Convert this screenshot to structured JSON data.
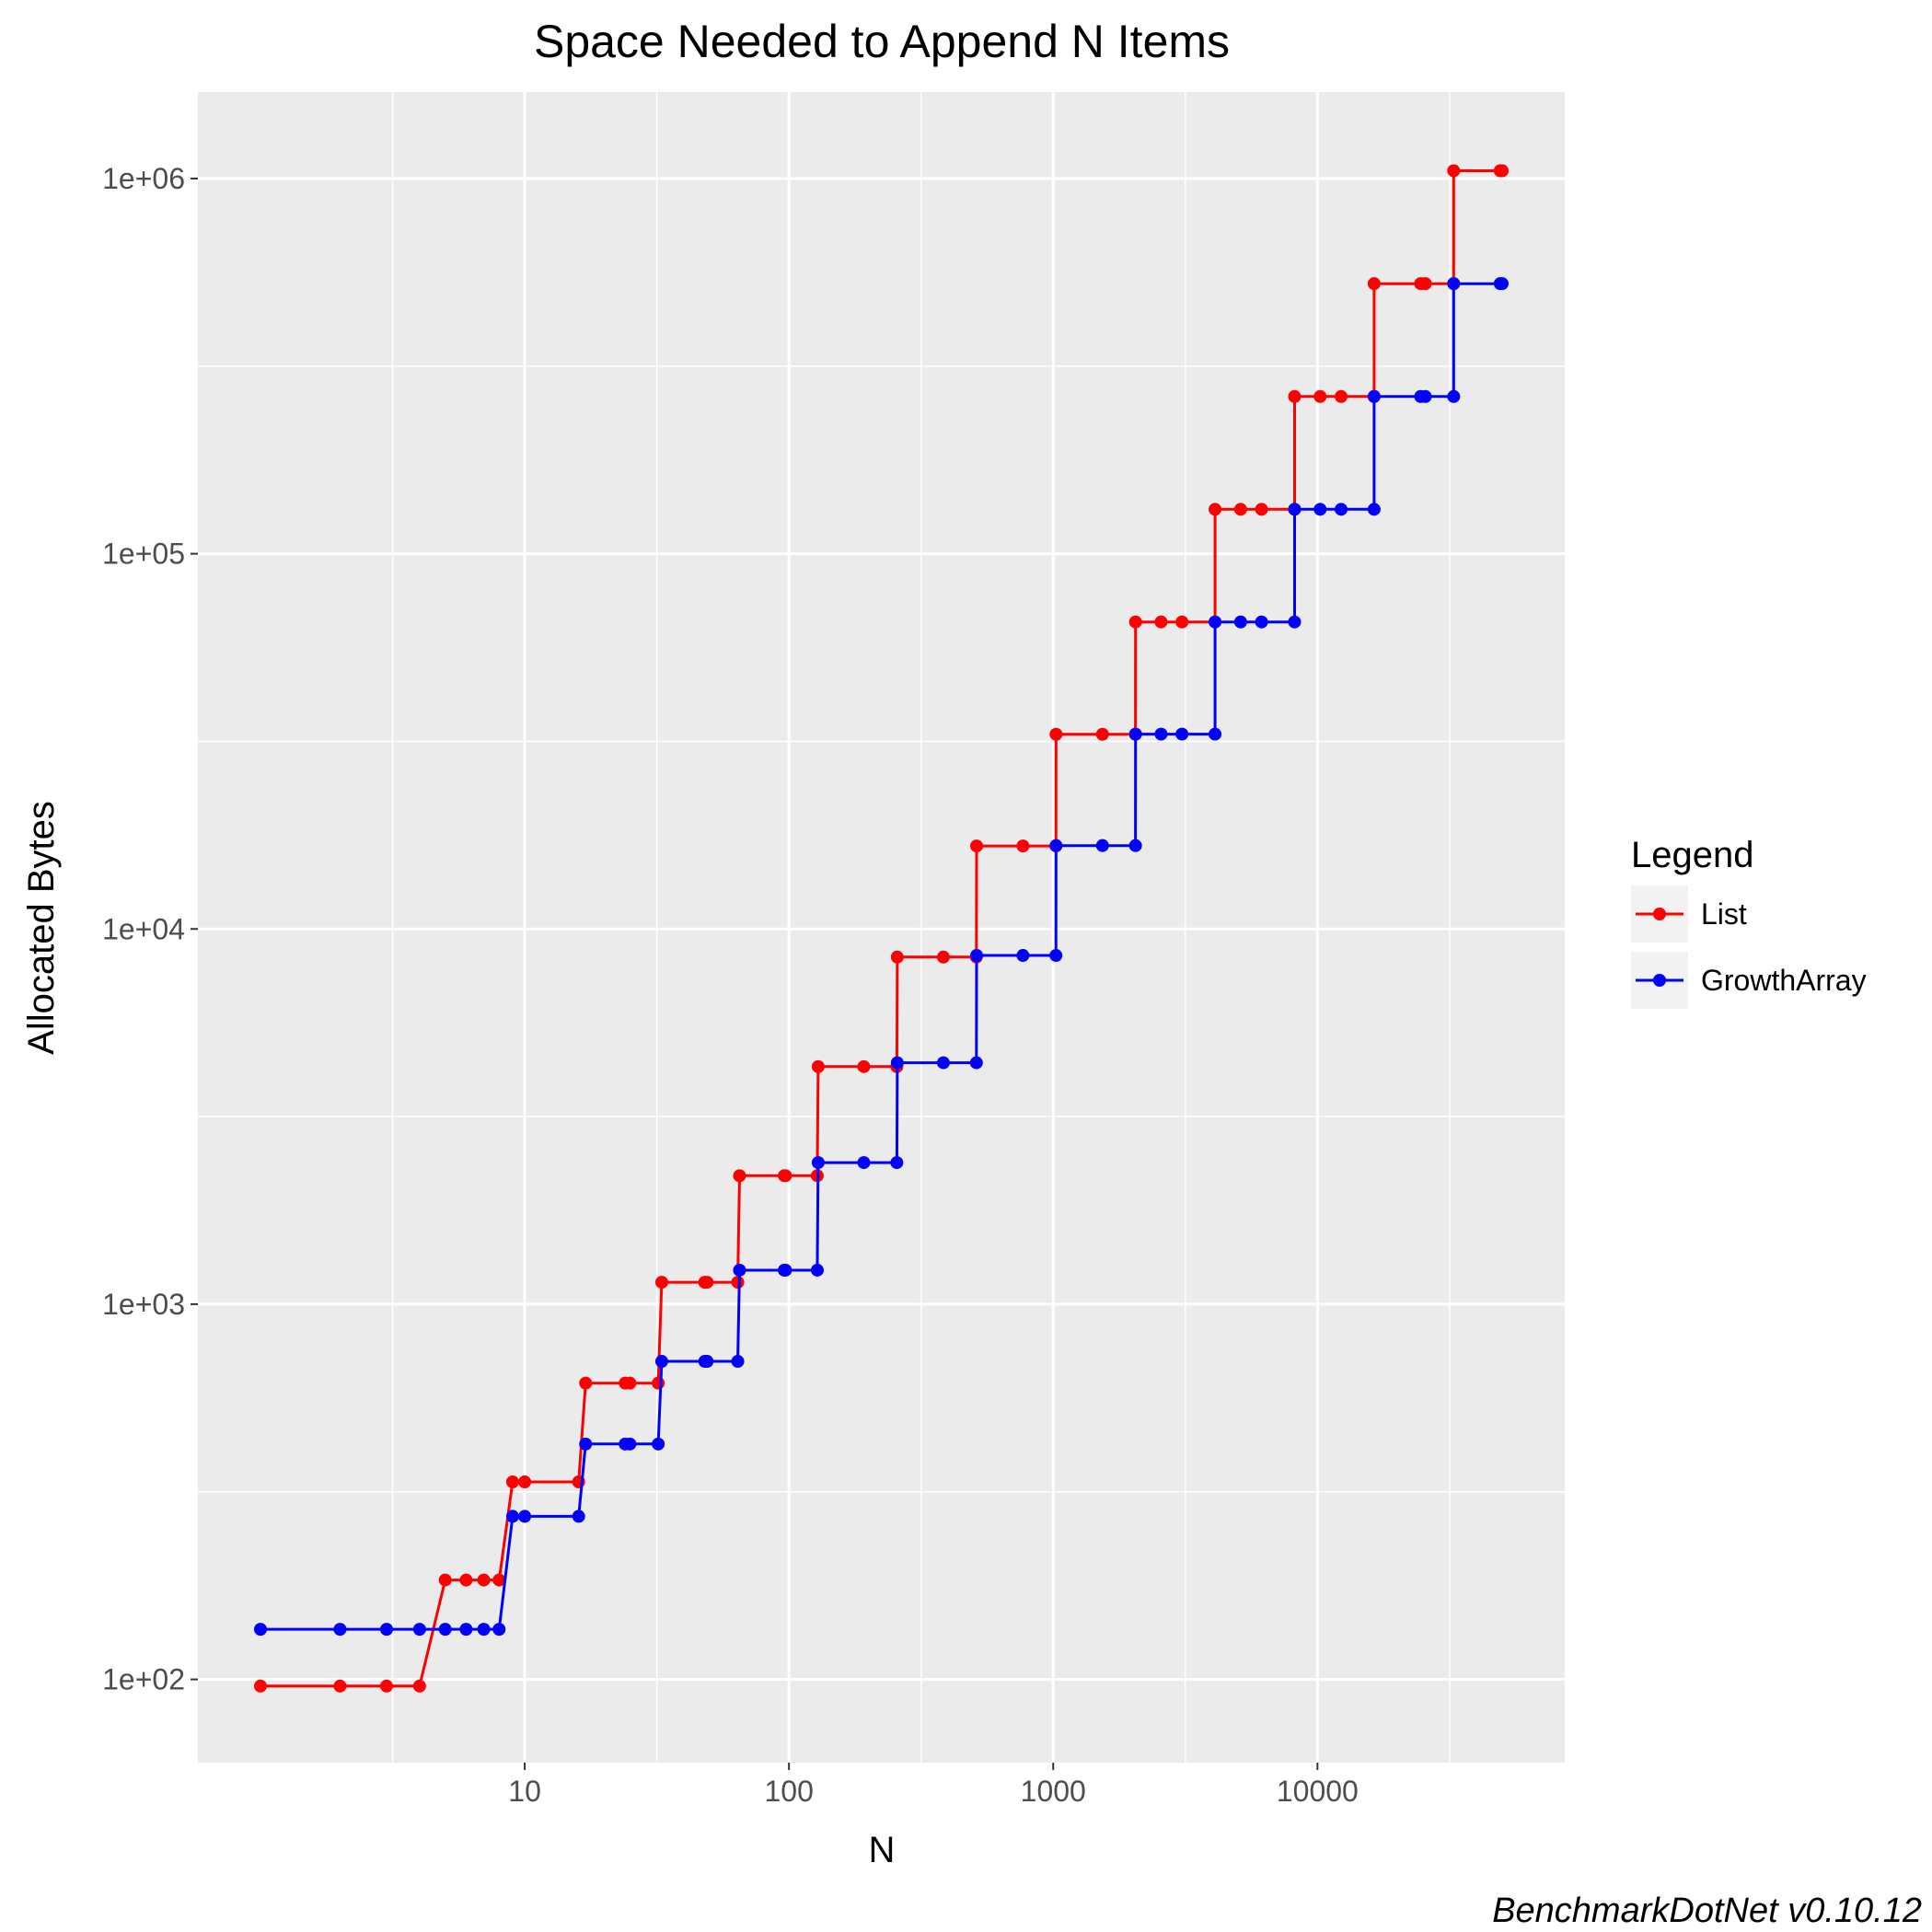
{
  "chart_data": {
    "type": "line",
    "title": "Space Needed to Append N Items",
    "xlabel": "N",
    "ylabel": "Allocated Bytes",
    "x_scale": "log10",
    "y_scale": "log10",
    "xlim": [
      1,
      50000
    ],
    "ylim": [
      60,
      1700000
    ],
    "x_ticks": [
      10,
      100,
      1000,
      10000
    ],
    "x_tick_labels": [
      "10",
      "100",
      "1000",
      "10000"
    ],
    "y_ticks": [
      100,
      1000,
      10000,
      100000,
      1000000
    ],
    "y_tick_labels": [
      "1e+02",
      "1e+03",
      "1e+04",
      "1e+05",
      "1e+06"
    ],
    "grid": true,
    "legend": {
      "title": "Legend",
      "position": "right"
    },
    "caption": "BenchmarkDotNet v0.10.12",
    "series": [
      {
        "name": "List",
        "color": "#ff0000",
        "x": [
          1,
          2,
          3,
          4,
          5,
          6,
          7,
          8,
          9,
          10,
          16,
          17,
          24,
          25,
          32,
          33,
          48,
          49,
          64,
          65,
          96,
          97,
          128,
          129,
          192,
          256,
          257,
          384,
          512,
          513,
          768,
          1024,
          1025,
          1536,
          2048,
          2049,
          2560,
          3072,
          4096,
          4097,
          5120,
          6144,
          8192,
          8193,
          10240,
          12288,
          16384,
          16385,
          24576,
          25600,
          32768,
          32769,
          49152,
          50000
        ],
        "values": [
          96,
          96,
          96,
          96,
          184,
          184,
          184,
          184,
          336,
          336,
          336,
          616,
          616,
          616,
          616,
          1144,
          1144,
          1144,
          1144,
          2200,
          2200,
          2200,
          2200,
          4296,
          4296,
          4296,
          8416,
          8416,
          8416,
          16640,
          16640,
          16640,
          33024,
          33024,
          33024,
          65792,
          65792,
          65792,
          65792,
          131328,
          131328,
          131328,
          131328,
          262400,
          262400,
          262400,
          262400,
          524544,
          524544,
          524544,
          524544,
          1048832,
          1048832,
          1048832
        ]
      },
      {
        "name": "GrowthArray",
        "color": "#0000ff",
        "x": [
          1,
          2,
          3,
          4,
          5,
          6,
          7,
          8,
          9,
          10,
          16,
          17,
          24,
          25,
          32,
          33,
          48,
          49,
          64,
          65,
          96,
          97,
          128,
          129,
          192,
          256,
          257,
          384,
          512,
          513,
          768,
          1024,
          1025,
          1536,
          2048,
          2049,
          2560,
          3072,
          4096,
          4097,
          5120,
          6144,
          8192,
          8193,
          10240,
          12288,
          16384,
          16385,
          24576,
          25600,
          32768,
          32769,
          49152,
          50000
        ],
        "values": [
          136,
          136,
          136,
          136,
          136,
          136,
          136,
          136,
          272,
          272,
          272,
          424,
          424,
          424,
          424,
          704,
          704,
          704,
          704,
          1232,
          1232,
          1232,
          1232,
          2384,
          2384,
          2384,
          4400,
          4400,
          4400,
          8500,
          8500,
          8500,
          16680,
          16680,
          16680,
          33050,
          33050,
          33050,
          33050,
          65800,
          65800,
          65800,
          65800,
          131340,
          131340,
          131340,
          131340,
          262410,
          262410,
          262410,
          262410,
          524550,
          524550,
          524550
        ]
      }
    ]
  }
}
